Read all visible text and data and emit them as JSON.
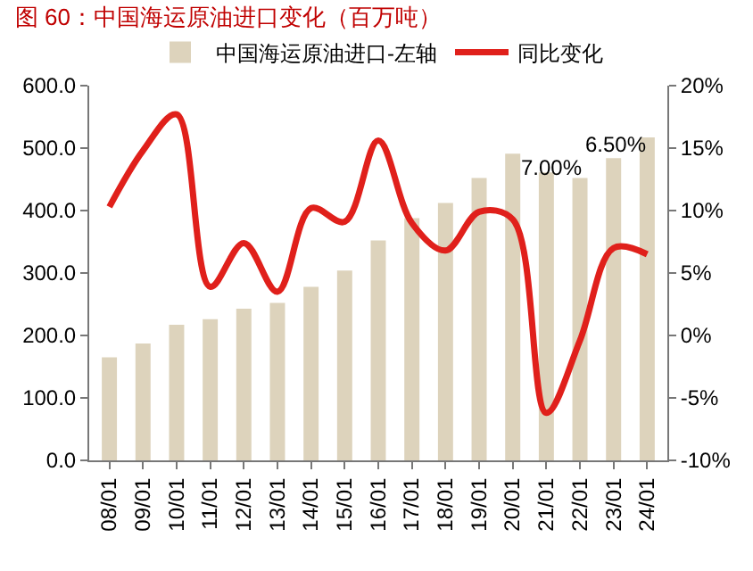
{
  "chart_data": {
    "type": "bar",
    "title": "图 60：中国海运原油进口变化（百万吨）",
    "categories": [
      "08/01",
      "09/01",
      "10/01",
      "11/01",
      "12/01",
      "13/01",
      "14/01",
      "15/01",
      "16/01",
      "17/01",
      "18/01",
      "19/01",
      "20/01",
      "21/01",
      "22/01",
      "23/01",
      "24/01"
    ],
    "series": [
      {
        "name": "中国海运原油进口-左轴",
        "color": "#ddd3bc",
        "values": [
          165,
          187,
          217,
          226,
          243,
          252,
          278,
          304,
          352,
          388,
          412,
          452,
          491,
          461,
          452,
          484,
          517
        ]
      },
      {
        "name": "同比变化",
        "type": "line",
        "axis": "y2",
        "color": "#e0201b",
        "values": [
          10.3,
          14.8,
          17.7,
          3.9,
          7.4,
          3.5,
          10.2,
          9.1,
          15.6,
          9.0,
          6.8,
          9.9,
          9.3,
          -6.2,
          -0.4,
          7.0,
          6.5
        ]
      }
    ],
    "ylim": [
      0,
      600
    ],
    "yticks": [
      {
        "value": 0,
        "label": "0.0"
      },
      {
        "value": 100,
        "label": "100.0"
      },
      {
        "value": 200,
        "label": "200.0"
      },
      {
        "value": 300,
        "label": "300.0"
      },
      {
        "value": 400,
        "label": "400.0"
      },
      {
        "value": 500,
        "label": "500.0"
      },
      {
        "value": 600,
        "label": "600.0"
      }
    ],
    "y2lim": [
      -10,
      20
    ],
    "y2ticks": [
      {
        "value": -10,
        "label": "-10%"
      },
      {
        "value": -5,
        "label": "-5%"
      },
      {
        "value": 0,
        "label": "0%"
      },
      {
        "value": 5,
        "label": "5%"
      },
      {
        "value": 10,
        "label": "10%"
      },
      {
        "value": 15,
        "label": "15%"
      },
      {
        "value": 20,
        "label": "20%"
      }
    ],
    "annotations": [
      "7.00%",
      "6.50%"
    ],
    "grid": false,
    "legend": "top",
    "marker": "none",
    "line_style": "solid"
  }
}
